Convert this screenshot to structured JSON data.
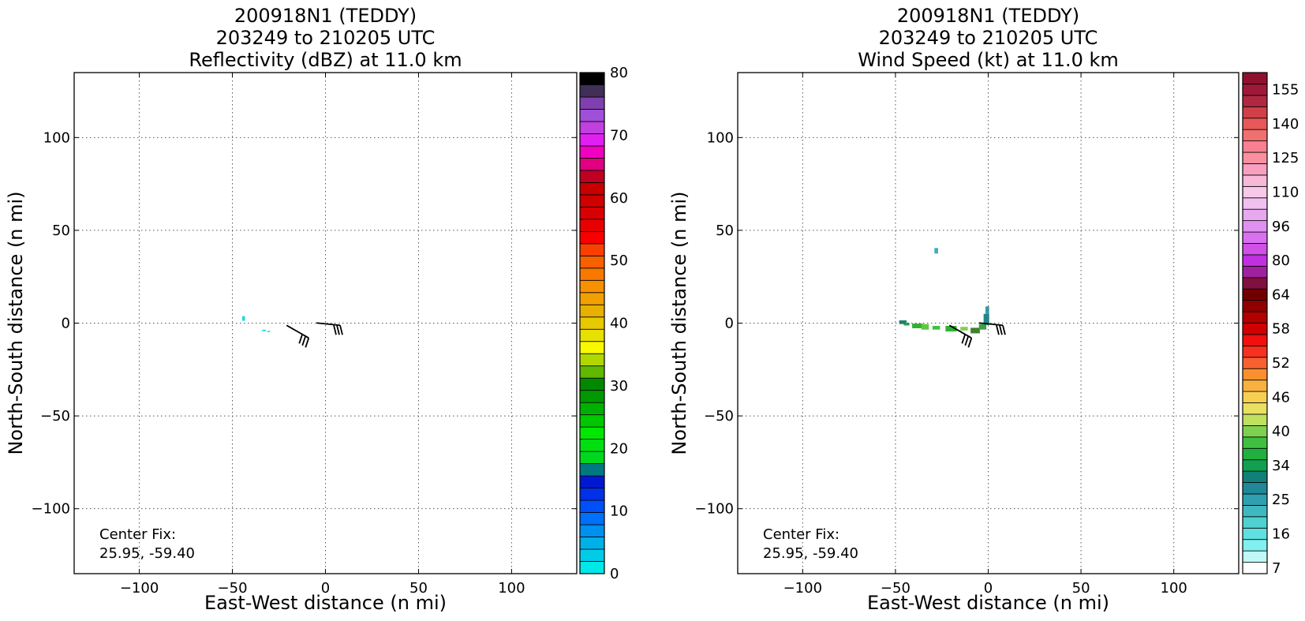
{
  "chart_data": [
    {
      "type": "heatmap",
      "title_lines": [
        "200918N1 (TEDDY)",
        "203249 to 210205 UTC",
        "Reflectivity (dBZ) at 11.0 km"
      ],
      "xlabel": "East-West distance (n mi)",
      "ylabel": "North-South distance (n mi)",
      "xlim": [
        -135,
        135
      ],
      "ylim": [
        -135,
        135
      ],
      "xticks": [
        -100,
        -50,
        0,
        50,
        100
      ],
      "yticks": [
        -100,
        -50,
        0,
        50,
        100
      ],
      "xtick_labels": [
        "−100",
        "−50",
        "0",
        "50",
        "100"
      ],
      "ytick_labels": [
        "−100",
        "−50",
        "0",
        "50",
        "100"
      ],
      "grid": true,
      "annotation": [
        "Center Fix:",
        "25.95, -59.40"
      ],
      "colorbar": {
        "tick_values": [
          0,
          10,
          20,
          30,
          40,
          50,
          60,
          70,
          80
        ],
        "tick_labels": [
          "0",
          "10",
          "20",
          "30",
          "40",
          "50",
          "60",
          "70",
          "80"
        ],
        "colors": [
          "#00e8e8",
          "#00cce8",
          "#00b0e8",
          "#0090f0",
          "#0070f8",
          "#0050f8",
          "#0030e8",
          "#0018d0",
          "#007880",
          "#00d820",
          "#00e010",
          "#00e800",
          "#00c800",
          "#00b000",
          "#009800",
          "#008800",
          "#60b800",
          "#b0d800",
          "#f8f800",
          "#e8e000",
          "#e8c800",
          "#e8b000",
          "#f0a000",
          "#f89000",
          "#f87800",
          "#f86000",
          "#f84000",
          "#f80000",
          "#e80000",
          "#d80000",
          "#d00000",
          "#c80000",
          "#c00020",
          "#e00080",
          "#f000c0",
          "#e020f0",
          "#c040e0",
          "#a050d8",
          "#8040b0",
          "#403058",
          "#000000"
        ]
      },
      "data_points": [
        {
          "x": -44,
          "y": 2.5,
          "w": 1.5,
          "h": 2.5,
          "color": "#20d8e0"
        },
        {
          "x": -33,
          "y": -4,
          "w": 2,
          "h": 1,
          "color": "#40e0e0"
        },
        {
          "x": -30.5,
          "y": -4.5,
          "w": 1.5,
          "h": 0.8,
          "color": "#40e0e0"
        }
      ],
      "wind_barbs": [
        {
          "x": -9,
          "y": -8
        },
        {
          "x": 7,
          "y": -5
        }
      ]
    },
    {
      "type": "heatmap",
      "title_lines": [
        "200918N1 (TEDDY)",
        "203249 to 210205 UTC",
        "Wind Speed (kt) at 11.0 km"
      ],
      "xlabel": "East-West distance (n mi)",
      "ylabel": "North-South distance (n mi)",
      "xlim": [
        -135,
        135
      ],
      "ylim": [
        -135,
        135
      ],
      "xticks": [
        -100,
        -50,
        0,
        50,
        100
      ],
      "yticks": [
        -100,
        -50,
        0,
        50,
        100
      ],
      "xtick_labels": [
        "−100",
        "−50",
        "0",
        "50",
        "100"
      ],
      "ytick_labels": [
        "−100",
        "−50",
        "0",
        "50",
        "100"
      ],
      "grid": true,
      "annotation": [
        "Center Fix:",
        "25.95, -59.40"
      ],
      "colorbar": {
        "tick_labels": [
          "7",
          "16",
          "25",
          "34",
          "40",
          "46",
          "52",
          "58",
          "64",
          "80",
          "96",
          "110",
          "125",
          "140",
          "155"
        ],
        "tick_bin_index": [
          0,
          3,
          6,
          9,
          12,
          15,
          18,
          21,
          24,
          27,
          30,
          33,
          36,
          39,
          42
        ],
        "colors": [
          "#ffffff",
          "#c0f8f8",
          "#80f0f0",
          "#60e0e0",
          "#50d0d0",
          "#40b8c0",
          "#30a0b0",
          "#208898",
          "#108078",
          "#10a050",
          "#20b040",
          "#40c040",
          "#80d050",
          "#c0e060",
          "#e8e060",
          "#f8d050",
          "#f8b040",
          "#f89030",
          "#f86030",
          "#f83020",
          "#f01010",
          "#d00000",
          "#b00000",
          "#900000",
          "#700000",
          "#801040",
          "#a020a0",
          "#c030e0",
          "#d050e8",
          "#d870f0",
          "#e090f0",
          "#e8a8f0",
          "#f0c0f0",
          "#f8c8e8",
          "#f8b8d8",
          "#f8a0c0",
          "#f890a0",
          "#f88090",
          "#f07070",
          "#e85858",
          "#d04048",
          "#b02840",
          "#a01838",
          "#901030"
        ]
      },
      "data_points": [
        {
          "x": -46,
          "y": 0.5,
          "w": 4,
          "h": 2,
          "color": "#208070"
        },
        {
          "x": -44,
          "y": -0.5,
          "w": 3,
          "h": 1.5,
          "color": "#20a050"
        },
        {
          "x": -38,
          "y": -1.5,
          "w": 6,
          "h": 2.5,
          "color": "#30b030"
        },
        {
          "x": -34,
          "y": -2,
          "w": 4,
          "h": 3,
          "color": "#60c840"
        },
        {
          "x": -28,
          "y": -2.5,
          "w": 4,
          "h": 2,
          "color": "#40c040"
        },
        {
          "x": -20,
          "y": -3,
          "w": 6,
          "h": 3,
          "color": "#30b030"
        },
        {
          "x": -13,
          "y": -3,
          "w": 4,
          "h": 2,
          "color": "#80d050"
        },
        {
          "x": -7,
          "y": -4,
          "w": 5,
          "h": 3,
          "color": "#408030"
        },
        {
          "x": -3,
          "y": -2,
          "w": 4,
          "h": 3,
          "color": "#40a040"
        },
        {
          "x": -1,
          "y": 2,
          "w": 3,
          "h": 6,
          "color": "#208888"
        },
        {
          "x": -0.5,
          "y": 7,
          "w": 2,
          "h": 4,
          "color": "#30a0a8"
        },
        {
          "x": -28,
          "y": 39,
          "w": 2,
          "h": 3,
          "color": "#40b0c0"
        }
      ],
      "wind_barbs": [
        {
          "x": -9,
          "y": -8
        },
        {
          "x": 7,
          "y": -5
        }
      ]
    }
  ]
}
